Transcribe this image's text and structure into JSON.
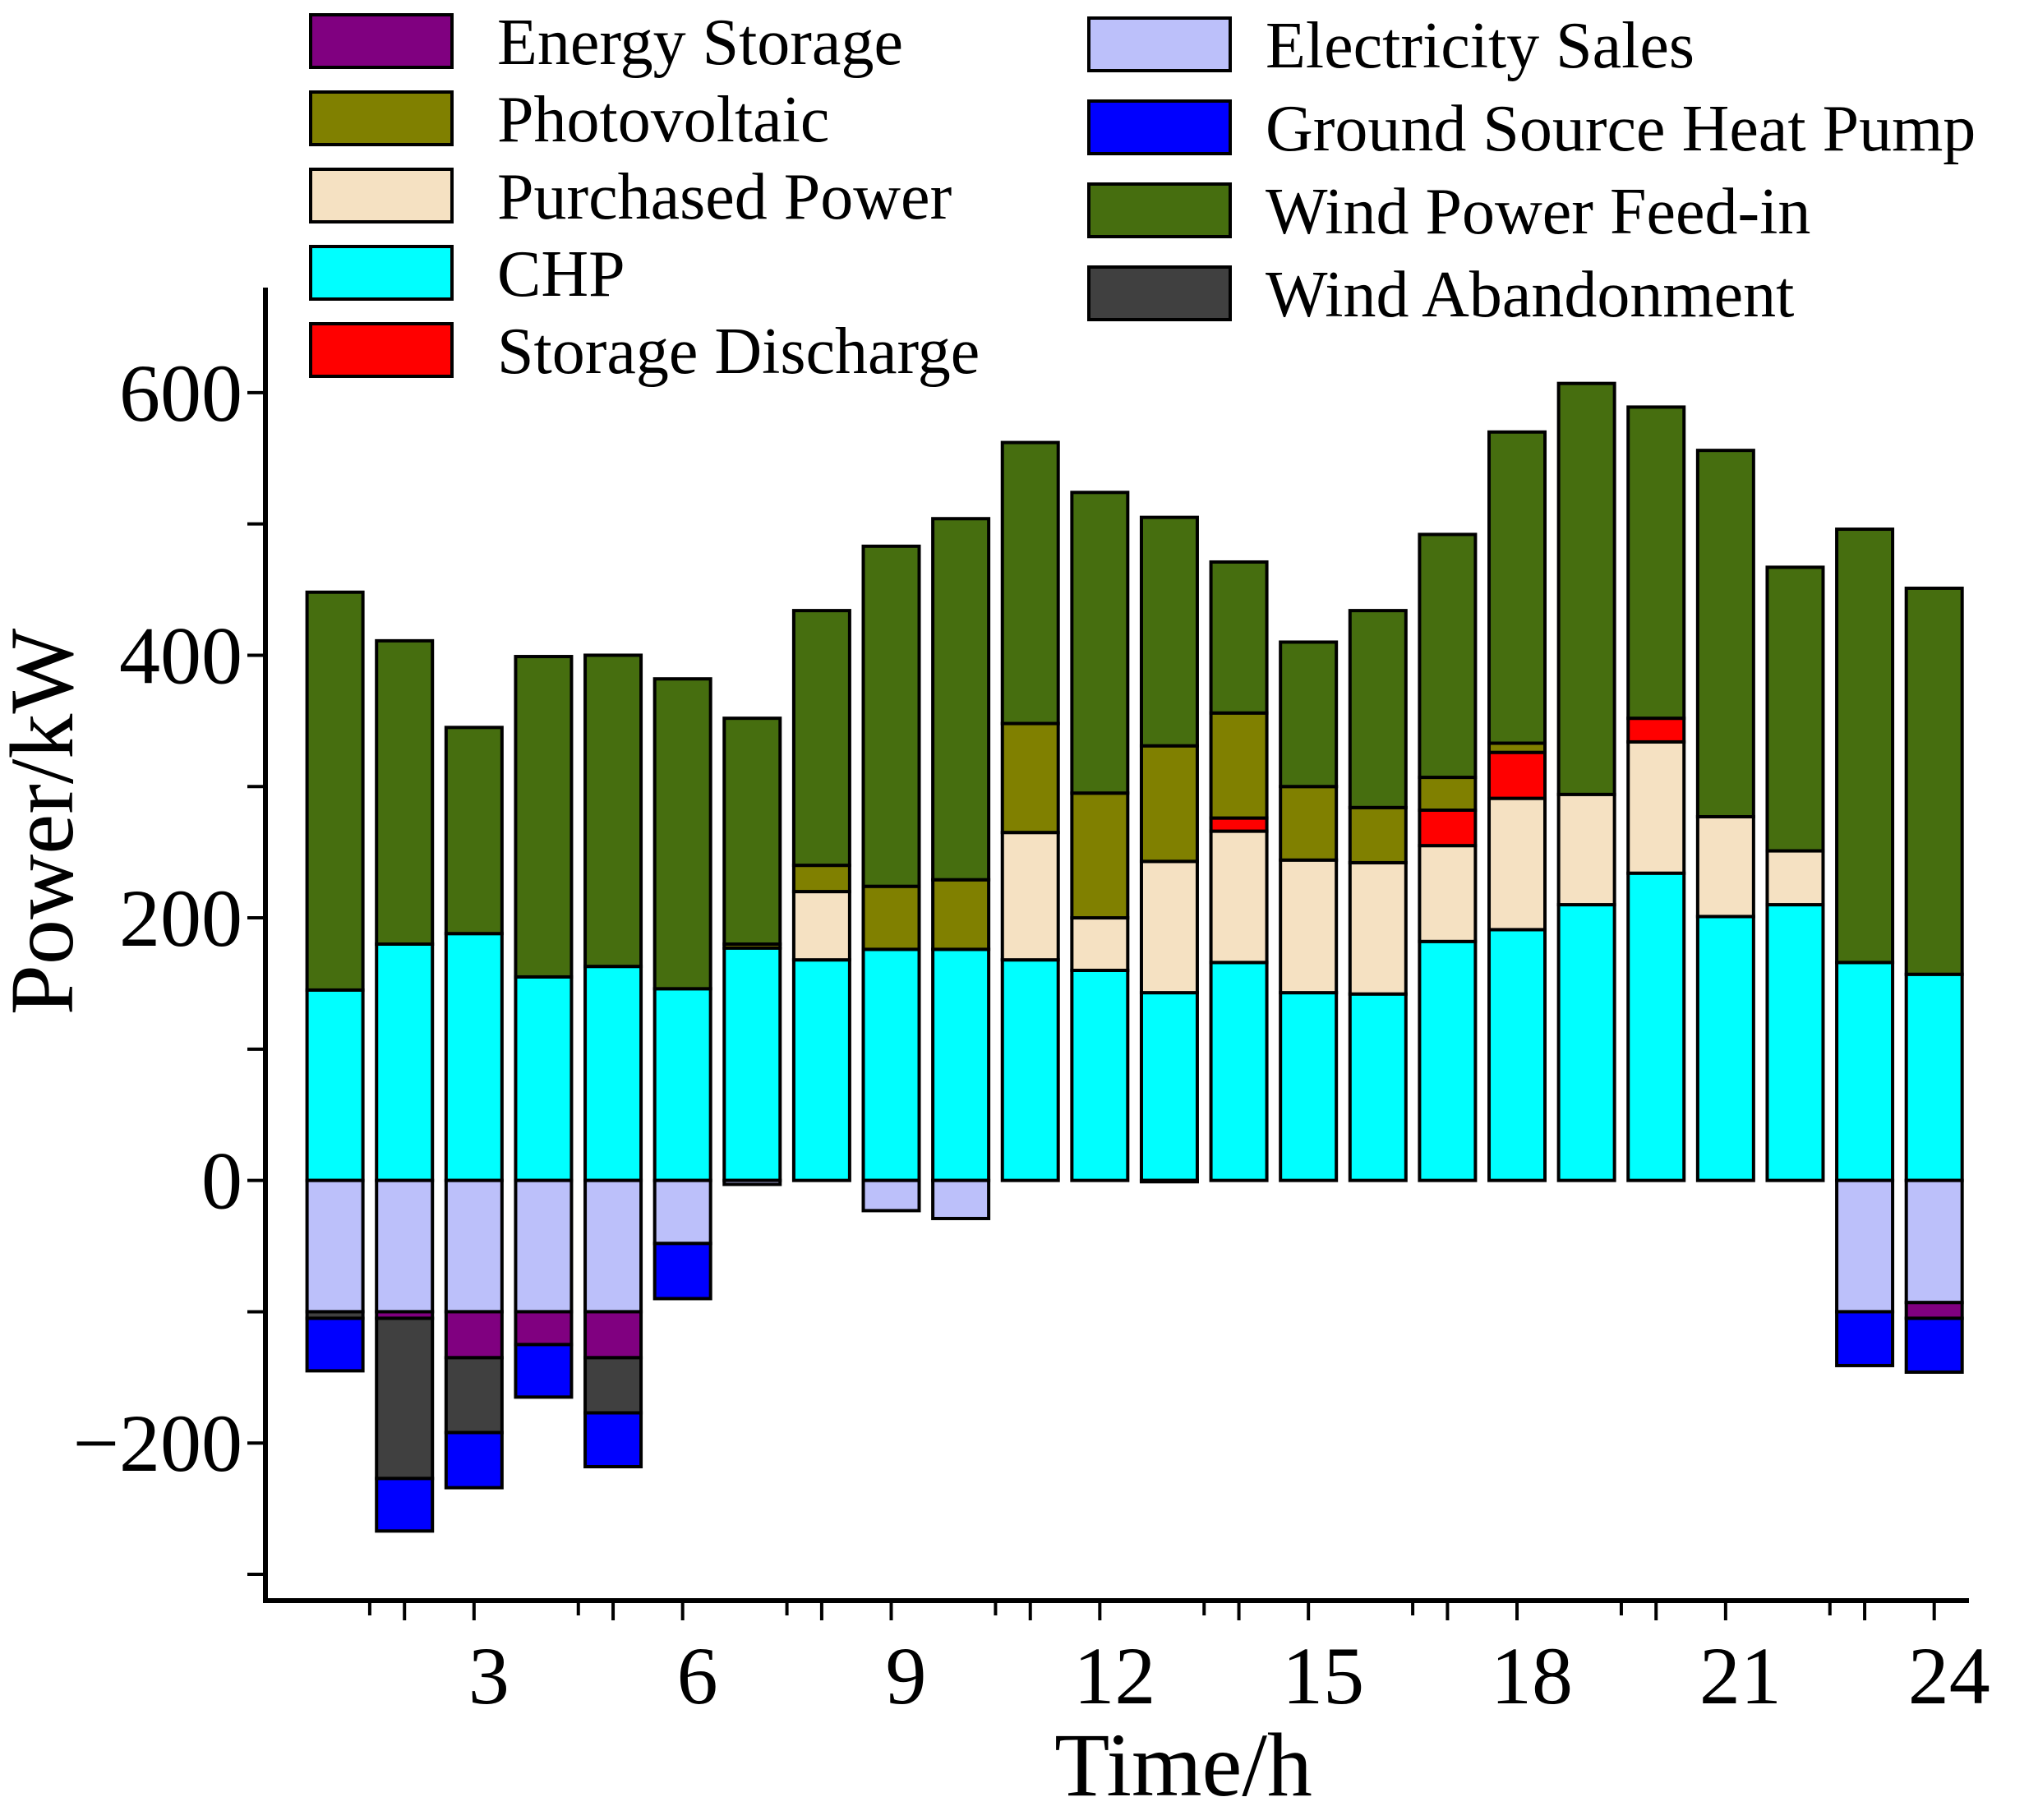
{
  "chart_data": {
    "type": "bar",
    "stacked": true,
    "xlabel": "Time/h",
    "ylabel": "Power/kW",
    "x": [
      1,
      2,
      3,
      4,
      5,
      6,
      7,
      8,
      9,
      10,
      11,
      12,
      13,
      14,
      15,
      16,
      17,
      18,
      19,
      20,
      21,
      22,
      23,
      24
    ],
    "xticks": [
      3,
      6,
      9,
      12,
      15,
      18,
      21,
      24
    ],
    "yticks": [
      -200,
      0,
      200,
      400,
      600
    ],
    "xlim": [
      0,
      24.5
    ],
    "ylim": [
      -320,
      680
    ],
    "grid": false,
    "legend_position": "top",
    "legend": [
      {
        "name": "Energy Storage",
        "color": "#800080"
      },
      {
        "name": "Photovoltaic",
        "color": "#808000"
      },
      {
        "name": "Purchased Power",
        "color": "#F5E1C2"
      },
      {
        "name": "CHP",
        "color": "#00FFFF"
      },
      {
        "name": "Storage Discharge",
        "color": "#FF0000"
      },
      {
        "name": "Electricity Sales",
        "color": "#BCC0FA"
      },
      {
        "name": "Ground Source Heat Pump",
        "color": "#0000FF"
      },
      {
        "name": "Wind Power Feed-in",
        "color": "#466E0F"
      },
      {
        "name": "Wind Abandonment",
        "color": "#404040"
      }
    ],
    "positive_series": [
      {
        "name": "CHP",
        "color": "#00FFFF",
        "values": [
          145,
          180,
          188,
          155,
          163,
          146,
          177,
          168,
          176,
          176,
          168,
          160,
          143,
          166,
          143,
          142,
          182,
          191,
          210,
          234,
          201,
          210,
          166,
          157
        ]
      },
      {
        "name": "Purchased Power",
        "color": "#F5E1C2",
        "values": [
          0,
          0,
          0,
          0,
          0,
          0,
          0,
          52,
          0,
          0,
          97,
          40,
          100,
          100,
          101,
          100,
          73,
          100,
          84,
          100,
          76,
          41,
          0,
          0
        ]
      },
      {
        "name": "Storage Discharge",
        "color": "#FF0000",
        "values": [
          0,
          0,
          0,
          0,
          0,
          0,
          0,
          0,
          0,
          0,
          0,
          0,
          0,
          10,
          0,
          0,
          27,
          35,
          0,
          18,
          0,
          0,
          0,
          0
        ]
      },
      {
        "name": "Photovoltaic",
        "color": "#808000",
        "values": [
          0,
          0,
          0,
          0,
          0,
          0,
          3,
          20,
          48,
          53,
          83,
          95,
          88,
          80,
          56,
          42,
          25,
          7,
          0,
          0,
          0,
          0,
          0,
          0
        ]
      },
      {
        "name": "Wind Power Feed-in",
        "color": "#466E0F",
        "values": [
          303,
          231,
          157,
          244,
          237,
          236,
          172,
          194,
          259,
          275,
          214,
          229,
          174,
          115,
          110,
          150,
          185,
          237,
          313,
          237,
          279,
          216,
          330,
          294
        ]
      }
    ],
    "negative_series": [
      {
        "name": "Electricity Sales",
        "color": "#BCC0FA",
        "values": [
          -100,
          -100,
          -100,
          -100,
          -100,
          -48,
          -3,
          0,
          -23,
          -29,
          0,
          0,
          -1,
          0,
          0,
          0,
          0,
          0,
          0,
          0,
          0,
          0,
          -100,
          -93
        ]
      },
      {
        "name": "Energy Storage",
        "color": "#800080",
        "values": [
          0,
          -5,
          -35,
          -25,
          -35,
          0,
          0,
          0,
          0,
          0,
          0,
          0,
          0,
          0,
          0,
          0,
          0,
          0,
          0,
          0,
          0,
          0,
          0,
          -12
        ]
      },
      {
        "name": "Wind Abandonment",
        "color": "#404040",
        "values": [
          -5,
          -122,
          -57,
          0,
          -42,
          0,
          0,
          0,
          0,
          0,
          0,
          0,
          0,
          0,
          0,
          0,
          0,
          0,
          0,
          0,
          0,
          0,
          0,
          0
        ]
      },
      {
        "name": "Ground Source Heat Pump",
        "color": "#0000FF",
        "values": [
          -40,
          -40,
          -42,
          -40,
          -41,
          -42,
          0,
          0,
          0,
          0,
          0,
          0,
          0,
          0,
          0,
          0,
          0,
          0,
          0,
          0,
          0,
          0,
          -41,
          -41
        ]
      }
    ]
  }
}
